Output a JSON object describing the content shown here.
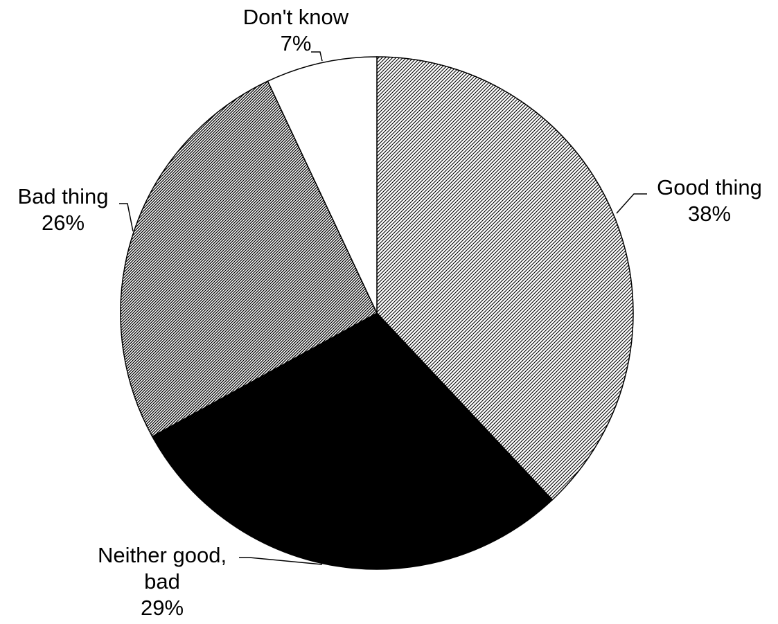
{
  "chart_data": {
    "type": "pie",
    "start": "12 o'clock",
    "direction": "clockwise",
    "slices": [
      {
        "label_lines": [
          "Good thing",
          "38%"
        ],
        "value": 38,
        "fill": "fine diagonal hatch (dense, light)",
        "color": "#ffffff"
      },
      {
        "label_lines": [
          "Neither good,",
          "bad",
          "29%"
        ],
        "value": 29,
        "fill": "solid",
        "color": "#000000"
      },
      {
        "label_lines": [
          "Bad thing",
          "26%"
        ],
        "value": 26,
        "fill": "fine dotted hatch (denser, darker)",
        "color": "#ffffff"
      },
      {
        "label_lines": [
          "Don't know",
          "7%"
        ],
        "value": 7,
        "fill": "solid",
        "color": "#ffffff"
      }
    ],
    "edge_color": "#000000"
  }
}
